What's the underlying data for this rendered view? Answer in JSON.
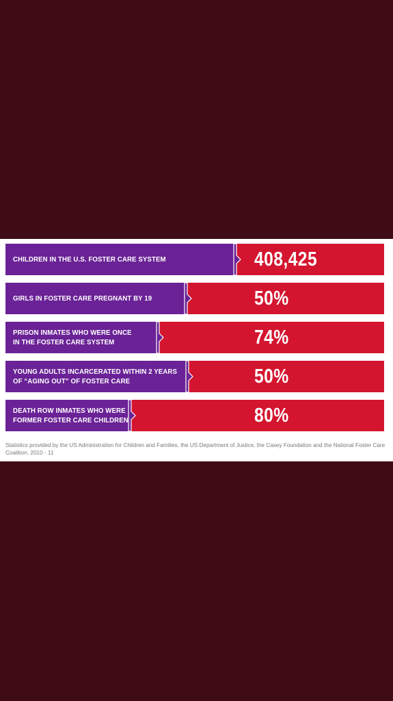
{
  "chart_data": {
    "type": "bar",
    "categories": [
      [
        "CHILDREN IN THE U.S. FOSTER CARE SYSTEM"
      ],
      [
        "GIRLS IN FOSTER CARE PREGNANT BY 19"
      ],
      [
        "PRISON INMATES WHO WERE ONCE",
        "IN THE FOSTER CARE SYSTEM"
      ],
      [
        "YOUNG ADULTS INCARCERATED WITHIN 2 YEARS",
        "OF “AGING OUT” OF FOSTER CARE"
      ],
      [
        "DEATH ROW INMATES WHO WERE",
        "FORMER FOSTER CARE CHILDREN"
      ]
    ],
    "values": [
      "408,425",
      "50%",
      "74%",
      "50%",
      "80%"
    ],
    "colors": {
      "label_bar": "#6a2296",
      "value_bar": "#d4152f",
      "background": "#3f0c15"
    }
  },
  "footnote": "Statistics provided by the US Administration for Children and Families, the US Department of Justice, the Casey Foundation and the National Foster Care Coalition. 2010 - 11"
}
